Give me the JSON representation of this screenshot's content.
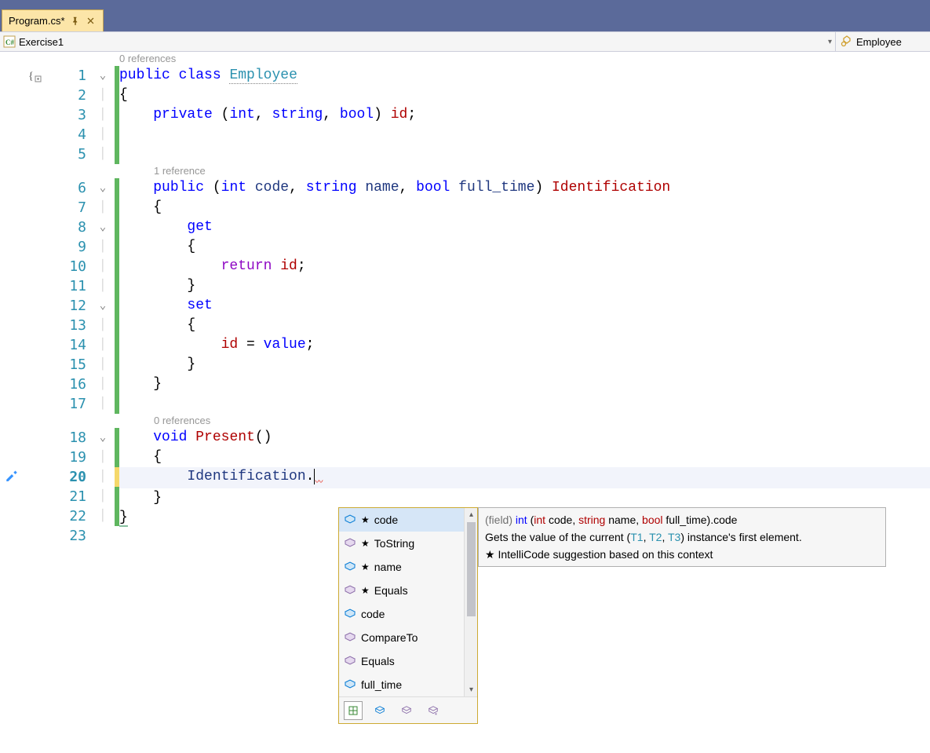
{
  "tab": {
    "title": "Program.cs*"
  },
  "navbar": {
    "left": "Exercise1",
    "right": "Employee"
  },
  "codelens": {
    "ref0": "0 references",
    "ref1": "1 reference",
    "ref2": "0 references"
  },
  "code": {
    "l1": "public class Employee",
    "l2": "{",
    "l3": "    private (int, string, bool) id;",
    "l4": "",
    "l5": "",
    "l6": "    public (int code, string name, bool full_time) Identification",
    "l7": "    {",
    "l8": "        get",
    "l9": "        {",
    "l10": "            return id;",
    "l11": "        }",
    "l12": "        set",
    "l13": "        {",
    "l14": "            id = value;",
    "l15": "        }",
    "l16": "    }",
    "l17": "",
    "l18": "    void Present()",
    "l19": "    {",
    "l20": "        Identification.",
    "l21": "    }",
    "l22": "}",
    "l23": ""
  },
  "linenumbers": [
    "1",
    "2",
    "3",
    "4",
    "5",
    "6",
    "7",
    "8",
    "9",
    "10",
    "11",
    "12",
    "13",
    "14",
    "15",
    "16",
    "17",
    "18",
    "19",
    "20",
    "21",
    "22",
    "23"
  ],
  "intellisense": {
    "items": [
      {
        "icon": "field",
        "star": true,
        "label": "code",
        "selected": true
      },
      {
        "icon": "method",
        "star": true,
        "label": "ToString"
      },
      {
        "icon": "field",
        "star": true,
        "label": "name"
      },
      {
        "icon": "method",
        "star": true,
        "label": "Equals"
      },
      {
        "icon": "field",
        "star": false,
        "label": "code"
      },
      {
        "icon": "method",
        "star": false,
        "label": "CompareTo"
      },
      {
        "icon": "method",
        "star": false,
        "label": "Equals"
      },
      {
        "icon": "field",
        "star": false,
        "label": "full_time"
      }
    ]
  },
  "tooltip": {
    "line1_pre": "(field) ",
    "line1_int": "int",
    "line1_paren_open": " (",
    "line1_p1t": "int",
    "line1_p1n": " code",
    "line1_c1": ", ",
    "line1_p2t": "string",
    "line1_p2n": " name",
    "line1_c2": ", ",
    "line1_p3t": "bool",
    "line1_p3n": " full_time",
    "line1_paren_close": ").",
    "line1_member": "code",
    "line2_a": "Gets the value of the current (",
    "line2_t1": "T1",
    "line2_c1": ", ",
    "line2_t2": "T2",
    "line2_c2": ", ",
    "line2_t3": "T3",
    "line2_b": ") instance's first element.",
    "line3": "★  IntelliCode suggestion based on this context"
  },
  "colors": {
    "title_bg": "#5b6a9a",
    "tab_bg": "#fce5a8",
    "keyword_blue": "#0000ff",
    "type_teal": "#2b91af",
    "kw_red": "#af0000",
    "purple": "#8f08c4",
    "ident_navy": "#1f377f",
    "codelens_gray": "#979797"
  }
}
